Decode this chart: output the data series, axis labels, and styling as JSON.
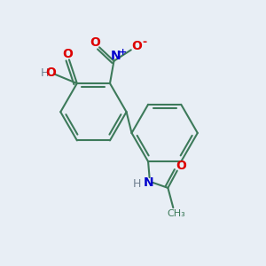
{
  "bg_color": "#e8eef5",
  "bond_color": "#3d7a5a",
  "atom_colors": {
    "O": "#dd0000",
    "N": "#0000cc",
    "H": "#708090",
    "C": "#3d7a5a"
  }
}
